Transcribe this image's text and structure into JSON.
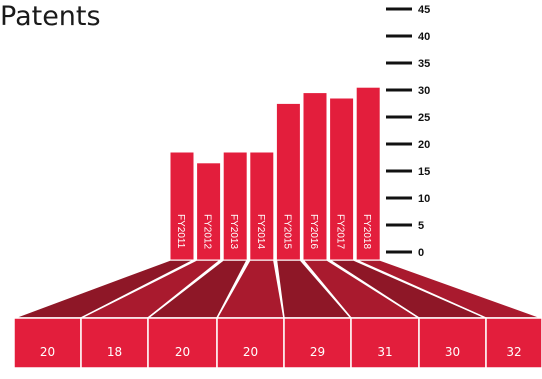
{
  "chart_data": {
    "type": "bar",
    "title": "Patents",
    "categories": [
      "FY2011",
      "FY2012",
      "FY2013",
      "FY2014",
      "FY2015",
      "FY2016",
      "FY2017",
      "FY2018"
    ],
    "values": [
      20,
      18,
      20,
      20,
      29,
      31,
      30,
      32
    ],
    "yticks": [
      0,
      5,
      10,
      15,
      20,
      25,
      30,
      35,
      40,
      45
    ],
    "ylim": [
      0,
      45
    ],
    "grid": false,
    "legend": "none",
    "value_labels": [
      "20",
      "18",
      "20",
      "20",
      "29",
      "31",
      "30",
      "32"
    ]
  },
  "colors": {
    "bar": "#e31e3c",
    "bar_edge": "#ffffff",
    "funnel_dark": "#8e1727",
    "funnel_light": "#a91a2e",
    "box": "#e31e3c",
    "tick": "#111111"
  }
}
